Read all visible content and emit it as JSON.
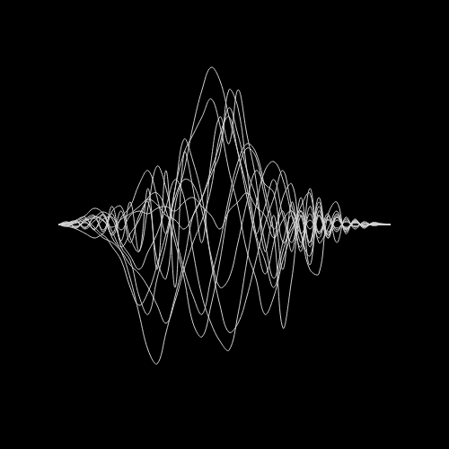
{
  "chart_data": {
    "type": "line",
    "x": [
      65,
      75,
      85,
      95,
      105,
      115,
      125,
      135,
      145,
      155,
      165,
      175,
      185,
      195,
      205,
      215,
      225,
      235,
      245,
      255,
      265,
      275,
      285,
      295,
      305,
      315,
      325,
      335,
      345,
      355,
      365,
      375,
      385,
      395,
      405,
      415,
      425,
      435
    ],
    "xlim": [
      0,
      500
    ],
    "ylim": [
      -250,
      250
    ],
    "grid": false,
    "tick_labels": false,
    "series": [
      {
        "color": "#d4d4d4",
        "values": [
          0,
          2,
          4,
          -3,
          8,
          5,
          -10,
          15,
          -20,
          10,
          25,
          -40,
          -60,
          20,
          60,
          110,
          150,
          175,
          160,
          120,
          80,
          40,
          -10,
          20,
          50,
          10,
          -20,
          15,
          -5,
          10,
          -15,
          8,
          -5,
          4,
          -3,
          2,
          1,
          0
        ]
      },
      {
        "color": "#d4d4d4",
        "values": [
          0,
          -2,
          5,
          8,
          -6,
          12,
          -15,
          -30,
          -60,
          -100,
          -140,
          -155,
          -120,
          -80,
          -40,
          10,
          30,
          60,
          90,
          130,
          100,
          60,
          30,
          -20,
          -60,
          -20,
          10,
          -30,
          20,
          -10,
          5,
          -8,
          6,
          -3,
          2,
          -1,
          0,
          0
        ]
      },
      {
        "color": "#d4d4d4",
        "values": [
          0,
          3,
          -4,
          6,
          10,
          -8,
          20,
          -25,
          -40,
          -80,
          -100,
          -60,
          -20,
          40,
          80,
          100,
          120,
          140,
          110,
          60,
          20,
          -30,
          -60,
          -100,
          -80,
          -40,
          -10,
          20,
          35,
          -20,
          -5,
          15,
          -8,
          5,
          -2,
          1,
          0,
          0
        ]
      },
      {
        "color": "#d4d4d4",
        "values": [
          0,
          1,
          3,
          -5,
          4,
          10,
          -12,
          8,
          20,
          45,
          60,
          30,
          -10,
          40,
          95,
          70,
          30,
          -40,
          -90,
          -120,
          -110,
          -80,
          -40,
          0,
          30,
          60,
          20,
          -10,
          -50,
          -55,
          10,
          25,
          -10,
          6,
          -4,
          2,
          0,
          0
        ]
      },
      {
        "color": "#d4d4d4",
        "values": [
          0,
          -1,
          2,
          6,
          -3,
          -10,
          15,
          20,
          -15,
          -30,
          20,
          65,
          40,
          -10,
          -50,
          -80,
          -100,
          -60,
          -20,
          30,
          70,
          90,
          80,
          40,
          -10,
          -115,
          -60,
          10,
          -20,
          30,
          -15,
          10,
          -6,
          3,
          -2,
          1,
          0,
          0
        ]
      },
      {
        "color": "#d4d4d4",
        "values": [
          0,
          2,
          -3,
          4,
          8,
          14,
          6,
          -20,
          -35,
          -50,
          -30,
          -10,
          20,
          50,
          30,
          -30,
          -80,
          -110,
          -130,
          -140,
          -100,
          -40,
          20,
          60,
          70,
          50,
          10,
          -25,
          40,
          -10,
          12,
          -20,
          8,
          -5,
          3,
          -1,
          0,
          0
        ]
      },
      {
        "color": "#d4d4d4",
        "values": [
          0,
          1,
          -2,
          3,
          -5,
          6,
          8,
          -6,
          10,
          15,
          12,
          18,
          20,
          15,
          25,
          30,
          20,
          10,
          -5,
          15,
          25,
          35,
          20,
          10,
          -15,
          5,
          15,
          -10,
          5,
          -8,
          6,
          -4,
          3,
          -2,
          1,
          0,
          0,
          0
        ]
      },
      {
        "color": "#d4d4d4",
        "values": [
          0,
          -1,
          3,
          -4,
          7,
          -6,
          12,
          -18,
          25,
          -30,
          40,
          -50,
          60,
          -70,
          80,
          40,
          -20,
          70,
          120,
          90,
          150,
          100,
          50,
          -30,
          10,
          -50,
          25,
          -20,
          12,
          -15,
          9,
          -6,
          4,
          -2,
          1,
          0,
          0,
          0
        ]
      },
      {
        "color": "#d4d4d4",
        "values": [
          0,
          2,
          4,
          10,
          18,
          12,
          -8,
          -25,
          -10,
          5,
          30,
          35,
          15,
          -20,
          -60,
          -110,
          -125,
          -90,
          -40,
          20,
          60,
          85,
          75,
          30,
          -5,
          15,
          -30,
          30,
          -25,
          20,
          -12,
          8,
          -5,
          3,
          -2,
          1,
          0,
          0
        ]
      },
      {
        "color": "#d4d4d4",
        "values": [
          0,
          -2,
          -5,
          -10,
          -15,
          -12,
          -25,
          -40,
          -70,
          -90,
          -75,
          -45,
          -10,
          30,
          50,
          45,
          15,
          -35,
          -70,
          -60,
          -20,
          25,
          60,
          45,
          35,
          -20,
          -5,
          10,
          -45,
          15,
          -10,
          12,
          -6,
          4,
          -2,
          1,
          0,
          0
        ]
      },
      {
        "color": "#d4d4d4",
        "values": [
          0,
          1,
          2,
          5,
          9,
          4,
          -3,
          6,
          12,
          20,
          28,
          22,
          10,
          5,
          -5,
          10,
          30,
          55,
          80,
          150,
          130,
          60,
          -10,
          -40,
          -70,
          -30,
          0,
          15,
          -20,
          25,
          -12,
          8,
          -4,
          2,
          -1,
          0,
          0,
          0
        ]
      },
      {
        "color": "#d4d4d4",
        "values": [
          0,
          -1,
          -3,
          2,
          -6,
          -15,
          -20,
          -30,
          -45,
          -55,
          -70,
          -90,
          -110,
          -85,
          -50,
          -20,
          5,
          40,
          100,
          120,
          80,
          30,
          -15,
          -55,
          -20,
          30,
          45,
          -10,
          -35,
          10,
          -8,
          5,
          -3,
          2,
          -1,
          0,
          0,
          0
        ]
      }
    ]
  }
}
